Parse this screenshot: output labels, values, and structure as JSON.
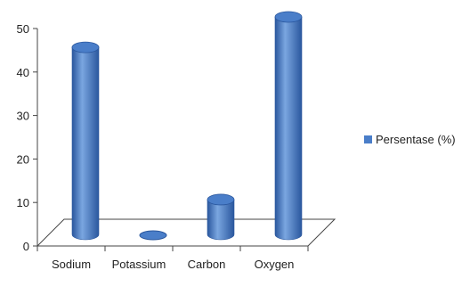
{
  "chart_data": {
    "type": "bar",
    "categories": [
      "Sodium",
      "Potassium",
      "Carbon",
      "Oxygen"
    ],
    "series": [
      {
        "name": "Persentase (%)",
        "values": [
          43,
          0,
          8,
          50
        ]
      }
    ],
    "title": "",
    "xlabel": "",
    "ylabel": "",
    "ylim": [
      0,
      50
    ],
    "yticks": [
      "0",
      "10",
      "20",
      "30",
      "40",
      "50"
    ],
    "grid": false,
    "legend": "right",
    "style": "3d-cylinder",
    "colors": {
      "bar": "#4a7ec9",
      "bar_dark": "#2a579e",
      "bar_light": "#7aa6e0",
      "floor": "#ffffff",
      "axis": "#444444"
    }
  }
}
